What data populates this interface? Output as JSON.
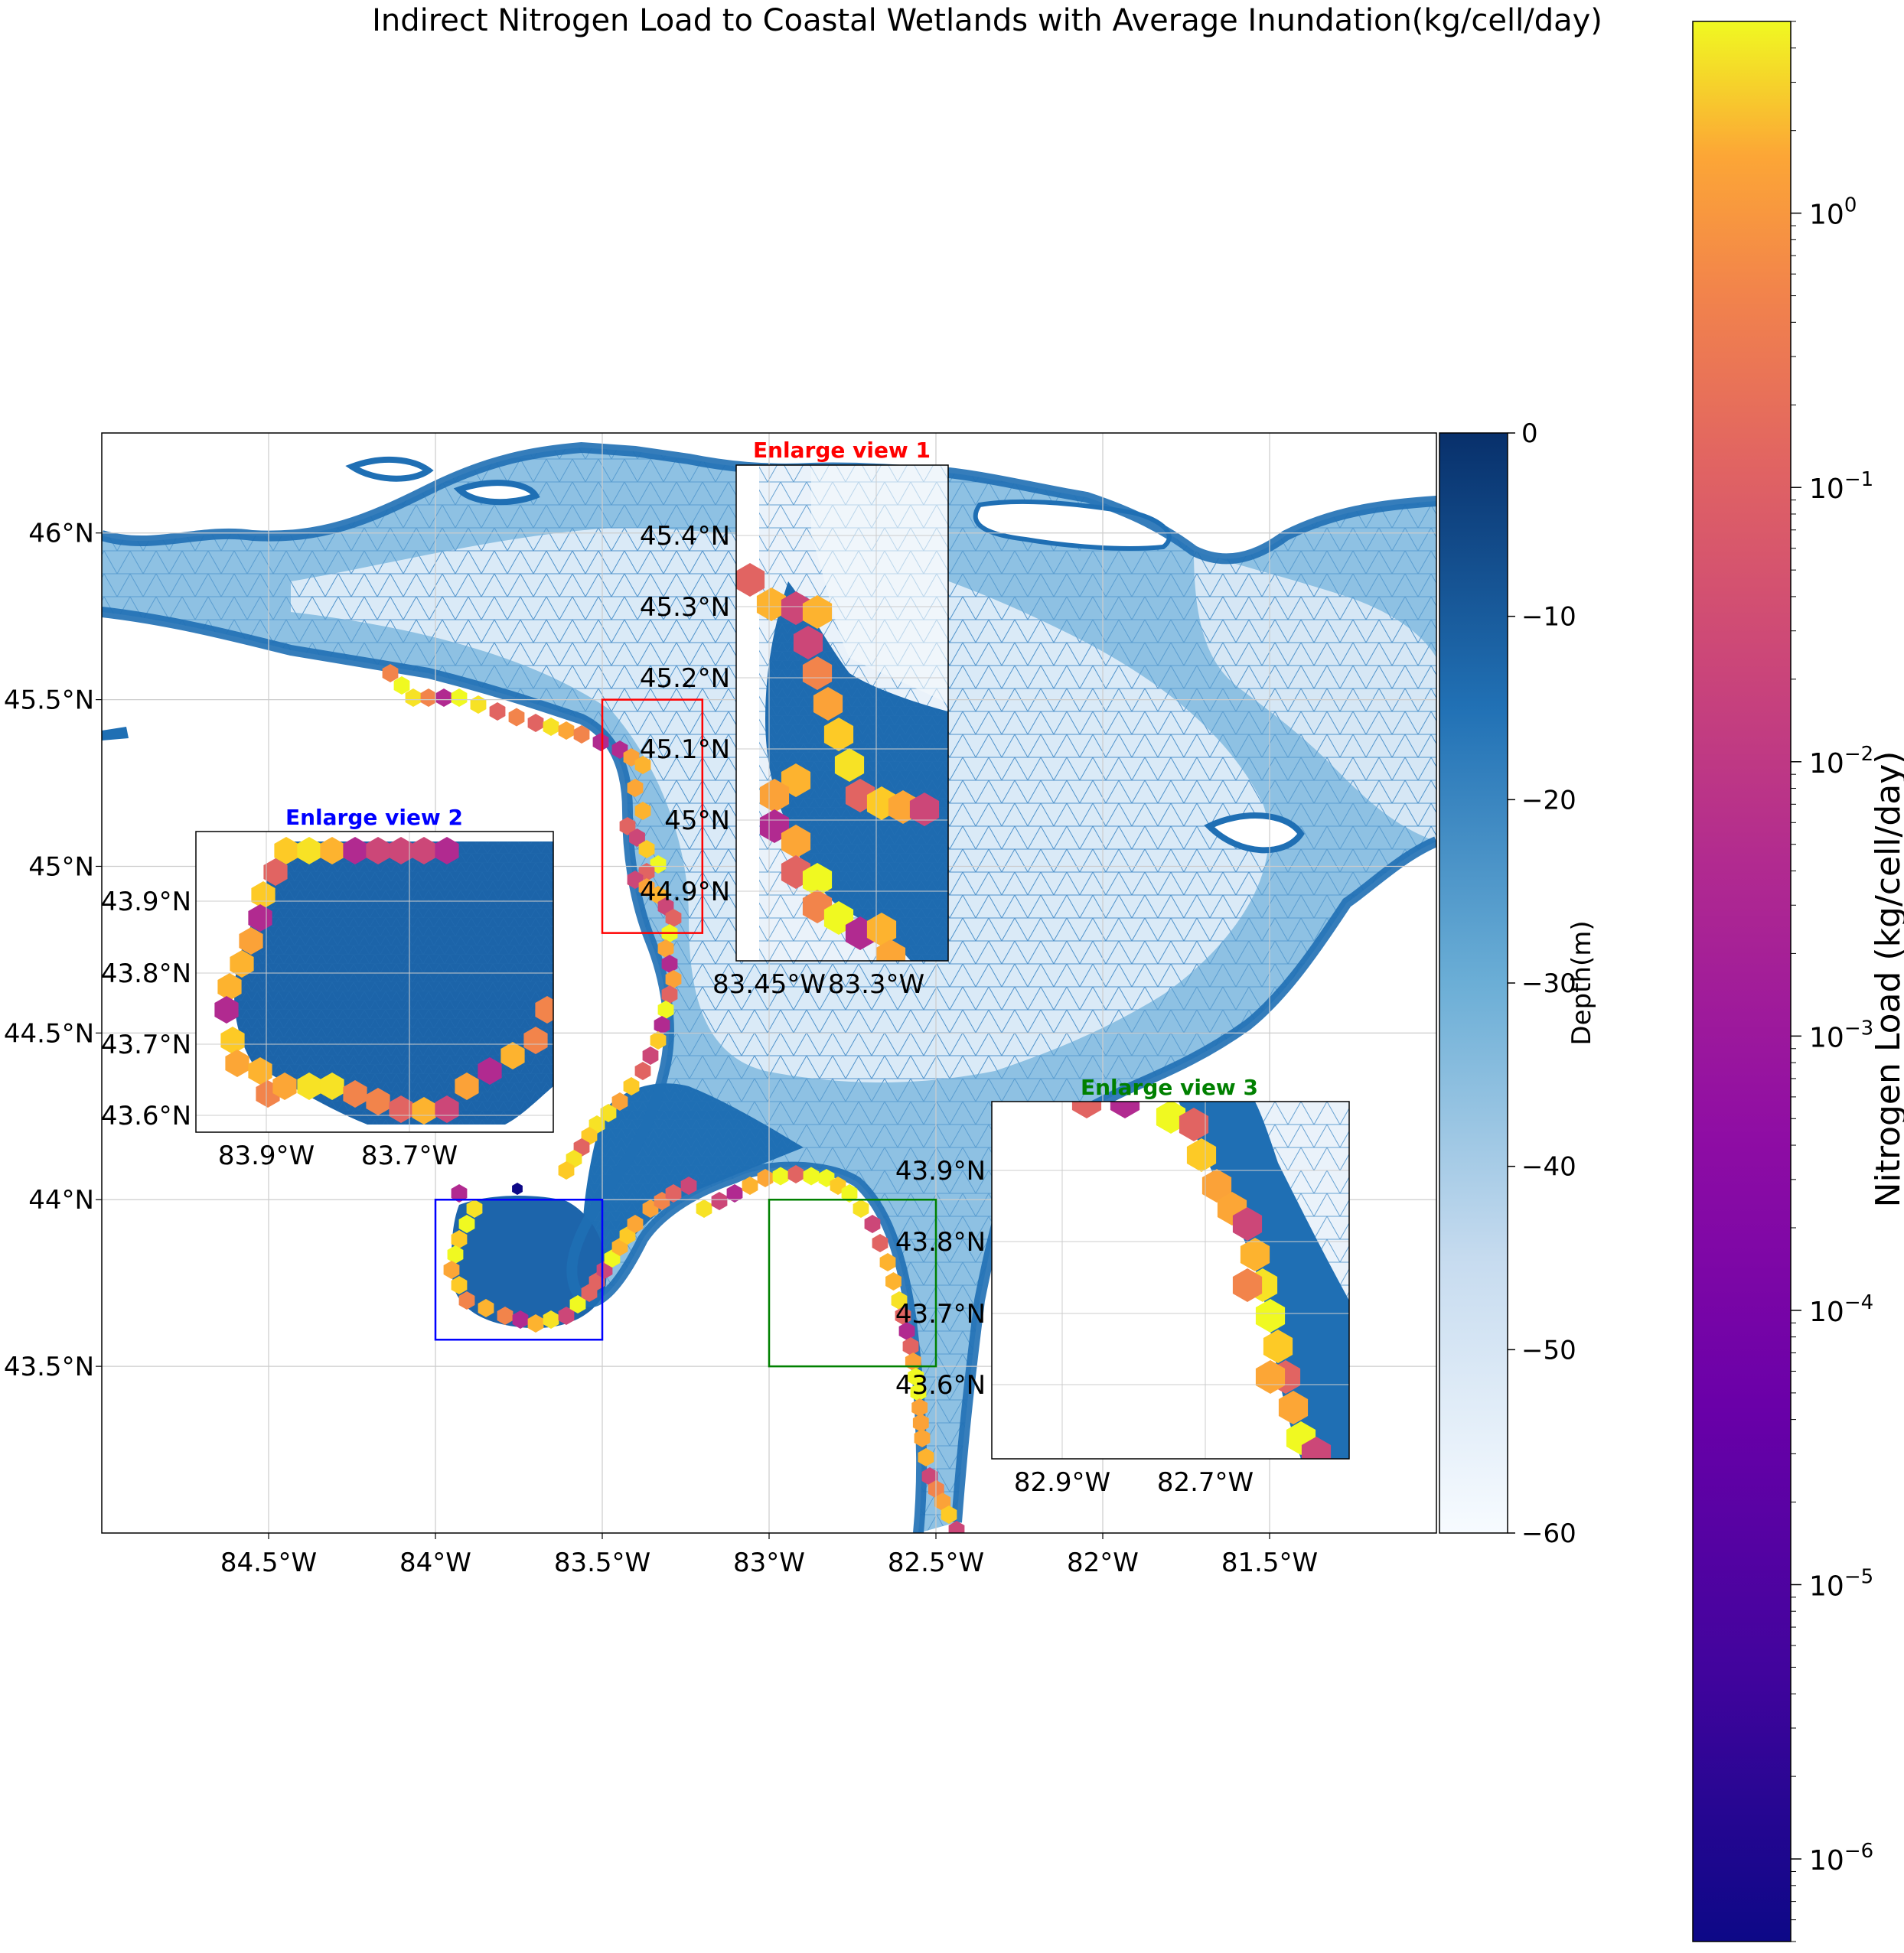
{
  "title": "Indirect Nitrogen Load to Coastal Wetlands with Average Inundation(kg/cell/day)",
  "main_map": {
    "lon_range": [
      -85.0,
      -81.0
    ],
    "lat_range": [
      43.0,
      46.3
    ],
    "lon_ticks": [
      {
        "value": -84.5,
        "label": "84.5°W"
      },
      {
        "value": -84.0,
        "label": "84°W"
      },
      {
        "value": -83.5,
        "label": "83.5°W"
      },
      {
        "value": -83.0,
        "label": "83°W"
      },
      {
        "value": -82.5,
        "label": "82.5°W"
      },
      {
        "value": -82.0,
        "label": "82°W"
      },
      {
        "value": -81.5,
        "label": "81.5°W"
      }
    ],
    "lat_ticks": [
      {
        "value": 46.0,
        "label": "46°N"
      },
      {
        "value": 45.5,
        "label": "45.5°N"
      },
      {
        "value": 45.0,
        "label": "45°N"
      },
      {
        "value": 44.5,
        "label": "44.5°N"
      },
      {
        "value": 44.0,
        "label": "44°N"
      },
      {
        "value": 43.5,
        "label": "43.5°N"
      }
    ],
    "highlight_boxes": [
      {
        "name": "Enlarge view 1",
        "color": "#ff0000",
        "lon": [
          -83.5,
          -83.2
        ],
        "lat": [
          44.8,
          45.5
        ]
      },
      {
        "name": "Enlarge view 2",
        "color": "#0000ff",
        "lon": [
          -84.0,
          -83.5
        ],
        "lat": [
          43.58,
          44.0
        ]
      },
      {
        "name": "Enlarge view 3",
        "color": "#008000",
        "lon": [
          -83.0,
          -82.5
        ],
        "lat": [
          43.5,
          44.0
        ]
      }
    ]
  },
  "insets": [
    {
      "title": "Enlarge view 1",
      "title_color": "#ff0000",
      "lat_ticks": [
        "45.4°N",
        "45.3°N",
        "45.2°N",
        "45.1°N",
        "45°N",
        "44.9°N"
      ],
      "lon_ticks": [
        "83.45°W",
        "83.3°W"
      ]
    },
    {
      "title": "Enlarge view 2",
      "title_color": "#0000ff",
      "lat_ticks": [
        "43.9°N",
        "43.8°N",
        "43.7°N",
        "43.6°N"
      ],
      "lon_ticks": [
        "83.9°W",
        "83.7°W"
      ]
    },
    {
      "title": "Enlarge view 3",
      "title_color": "#008000",
      "lat_ticks": [
        "43.9°N",
        "43.8°N",
        "43.7°N",
        "43.6°N"
      ],
      "lon_ticks": [
        "82.9°W",
        "82.7°W"
      ]
    }
  ],
  "depth_colorbar": {
    "label": "Depth(m)",
    "range": [
      -60,
      0
    ],
    "ticks": [
      "0",
      "−10",
      "−20",
      "−30",
      "−40",
      "−50",
      "−60"
    ],
    "colormap": "Blues",
    "color_deep": "#f7fbff",
    "color_shallow": "#08306b"
  },
  "nitrogen_colorbar": {
    "label": "Nitrogen Load (kg/cell/day)",
    "scale": "log",
    "range": [
      5e-07,
      5
    ],
    "ticks": [
      {
        "base": "10",
        "exp": "0",
        "value": 1
      },
      {
        "base": "10",
        "exp": "−1",
        "value": 0.1
      },
      {
        "base": "10",
        "exp": "−2",
        "value": 0.01
      },
      {
        "base": "10",
        "exp": "−3",
        "value": 0.001
      },
      {
        "base": "10",
        "exp": "−4",
        "value": 0.0001
      },
      {
        "base": "10",
        "exp": "−5",
        "value": 1e-05
      },
      {
        "base": "10",
        "exp": "−6",
        "value": 1e-06
      }
    ],
    "colormap": "plasma"
  }
}
